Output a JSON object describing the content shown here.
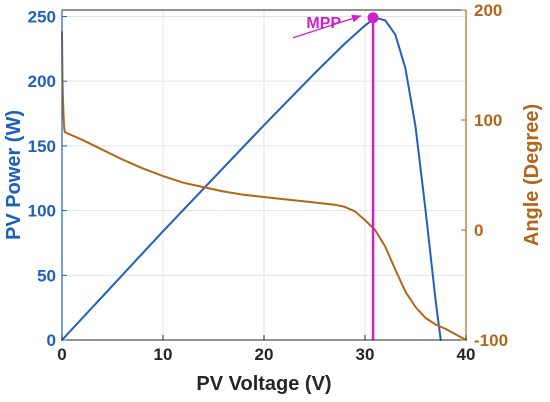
{
  "chart_data": {
    "type": "line",
    "xlabel": "PV Voltage (V)",
    "ylabel_left": "PV Power (W)",
    "ylabel_right": "Angle  (Degree)",
    "xlim": [
      0,
      40
    ],
    "ylim_left": [
      0,
      255
    ],
    "ylim_right": [
      -100,
      200
    ],
    "x_ticks": [
      0,
      10,
      20,
      30,
      40
    ],
    "y_left_ticks": [
      0,
      50,
      100,
      150,
      200,
      250
    ],
    "y_right_ticks": [
      -100,
      0,
      100,
      200
    ],
    "grid": true,
    "colors": {
      "power": "#1f5fbf",
      "angle": "#b3661a",
      "mpp": "#cc22cc",
      "axis_text": "#262626"
    },
    "series": [
      {
        "axis": "left",
        "x": [
          0,
          5,
          10,
          15,
          20,
          25,
          28,
          30,
          31,
          32,
          33,
          34,
          35,
          36,
          37,
          37.5
        ],
        "y": [
          0,
          42,
          84,
          125,
          166,
          206,
          229,
          243,
          249,
          247,
          236,
          210,
          165,
          100,
          30,
          0
        ]
      },
      {
        "axis": "right",
        "x": [
          0,
          0.05,
          0.1,
          0.15,
          0.2,
          0.25,
          0.3,
          0.5,
          2,
          4,
          6,
          8,
          10,
          12,
          14,
          16,
          18,
          20,
          22,
          24,
          26,
          27,
          28,
          29,
          30,
          31,
          32,
          33,
          34,
          35,
          36,
          37,
          38,
          39,
          40
        ],
        "y": [
          180,
          135,
          118,
          105,
          95,
          90,
          89,
          88,
          82,
          73,
          64,
          56,
          49,
          43,
          39,
          35,
          32,
          30,
          28,
          26,
          24,
          23,
          21,
          17,
          9,
          0,
          -15,
          -36,
          -56,
          -70,
          -80,
          -86,
          -90,
          -95,
          -100
        ]
      }
    ],
    "annotations": [
      {
        "text": "MPP",
        "x": 30.8,
        "y": 249
      }
    ]
  }
}
